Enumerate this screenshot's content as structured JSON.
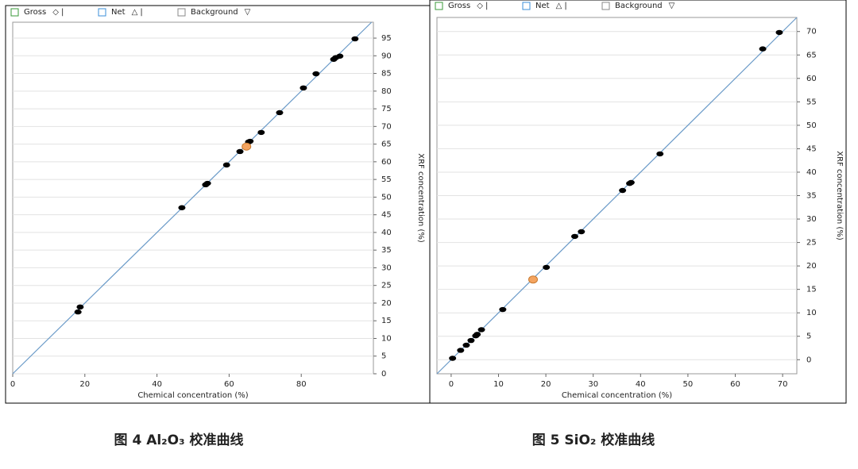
{
  "chart_data": [
    {
      "type": "scatter",
      "caption": "图 4 Al₂O₃ 校准曲线",
      "legend": [
        {
          "name": "Gross",
          "color": "#3a9a3a",
          "symbol": "◇ |"
        },
        {
          "name": "Net",
          "color": "#3b8fd8",
          "symbol": "△ |"
        },
        {
          "name": "Background",
          "color": "#8a8a8a",
          "symbol": "▽"
        }
      ],
      "x_label": "Chemical concentration (%)",
      "y_label": "XRF concentration (%)",
      "xlim": [
        0,
        100
      ],
      "ylim": [
        0,
        99.5
      ],
      "xticks": [
        0,
        20,
        40,
        60,
        80
      ],
      "yticks": [
        0,
        5,
        10,
        15,
        20,
        25,
        30,
        35,
        40,
        45,
        50,
        55,
        60,
        65,
        70,
        75,
        80,
        85,
        90,
        95
      ],
      "grid": true,
      "fit_line_color": "#6a9ac8",
      "series": [
        {
          "color": "#000000",
          "x": [
            18.1,
            18.7,
            46.9,
            53.5,
            54.0,
            59.3,
            63.0,
            65.4,
            65.8,
            68.9,
            74.0,
            80.6,
            84.1,
            89.0,
            89.6,
            90.7,
            94.9
          ],
          "values": [
            17.5,
            18.9,
            47.0,
            53.5,
            53.9,
            59.1,
            62.9,
            65.6,
            65.8,
            68.3,
            73.9,
            80.9,
            84.9,
            89.0,
            89.5,
            89.9,
            94.8
          ]
        },
        {
          "color": "#f4a460",
          "x": [
            64.8
          ],
          "values": [
            64.3
          ]
        }
      ]
    },
    {
      "type": "scatter",
      "caption": "图 5 SiO₂ 校准曲线",
      "legend": [
        {
          "name": "Gross",
          "color": "#3a9a3a",
          "symbol": "◇ |"
        },
        {
          "name": "Net",
          "color": "#3b8fd8",
          "symbol": "△ |"
        },
        {
          "name": "Background",
          "color": "#8a8a8a",
          "symbol": "▽"
        }
      ],
      "x_label": "Chemical concentration (%)",
      "y_label": "XRF concentration (%)",
      "xlim": [
        -3,
        73
      ],
      "ylim": [
        -3,
        73
      ],
      "xticks": [
        0,
        10,
        20,
        30,
        40,
        50,
        60,
        70
      ],
      "yticks": [
        0,
        5,
        10,
        15,
        20,
        25,
        30,
        35,
        40,
        45,
        50,
        55,
        60,
        65,
        70
      ],
      "grid": true,
      "fit_line_color": "#6a9ac8",
      "series": [
        {
          "color": "#000000",
          "x": [
            0.3,
            2.0,
            3.2,
            4.2,
            5.2,
            5.5,
            6.4,
            10.9,
            20.1,
            26.1,
            27.5,
            36.2,
            37.7,
            38.0,
            44.1,
            65.8,
            69.3
          ],
          "values": [
            0.3,
            2.0,
            3.1,
            4.1,
            5.1,
            5.4,
            6.4,
            10.7,
            19.7,
            26.3,
            27.3,
            36.1,
            37.6,
            37.8,
            43.9,
            66.3,
            69.8
          ]
        },
        {
          "color": "#f4a460",
          "x": [
            17.3
          ],
          "values": [
            17.1
          ]
        }
      ]
    }
  ]
}
